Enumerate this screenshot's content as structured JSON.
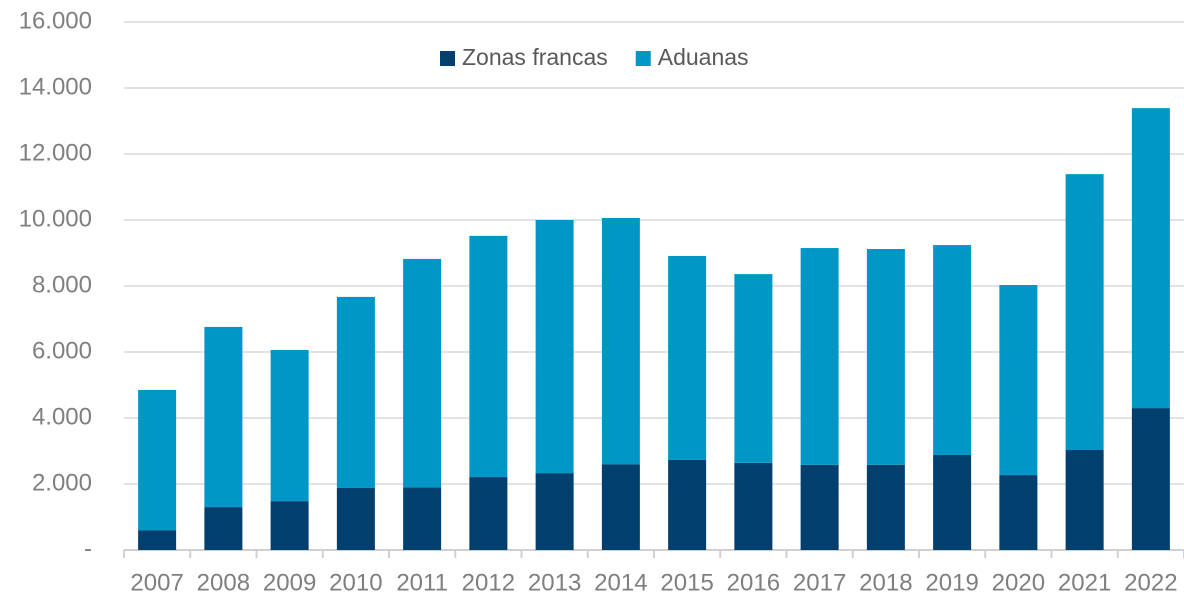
{
  "chart_data": {
    "type": "stacked_bar",
    "categories": [
      "2007",
      "2008",
      "2009",
      "2010",
      "2011",
      "2012",
      "2013",
      "2014",
      "2015",
      "2016",
      "2017",
      "2018",
      "2019",
      "2020",
      "2021",
      "2022"
    ],
    "series": [
      {
        "name": "Zonas francas",
        "color": "#003f6e",
        "values": [
          600,
          1300,
          1480,
          1880,
          1900,
          2210,
          2330,
          2600,
          2730,
          2640,
          2580,
          2580,
          2880,
          2270,
          3030,
          4300
        ]
      },
      {
        "name": "Aduanas",
        "color": "#0097c7",
        "values": [
          4250,
          5460,
          4580,
          5790,
          6920,
          7310,
          7670,
          7460,
          6180,
          5720,
          6570,
          6540,
          6360,
          5760,
          8360,
          9090
        ]
      }
    ],
    "ylim": [
      0,
      16000
    ],
    "yticks": [
      {
        "value": 0,
        "label": "-"
      },
      {
        "value": 2000,
        "label": "2.000"
      },
      {
        "value": 4000,
        "label": "4.000"
      },
      {
        "value": 6000,
        "label": "6.000"
      },
      {
        "value": 8000,
        "label": "8.000"
      },
      {
        "value": 10000,
        "label": "10.000"
      },
      {
        "value": 12000,
        "label": "12.000"
      },
      {
        "value": 14000,
        "label": "14.000"
      },
      {
        "value": 16000,
        "label": "16.000"
      }
    ],
    "grid": true,
    "legend": "top"
  }
}
